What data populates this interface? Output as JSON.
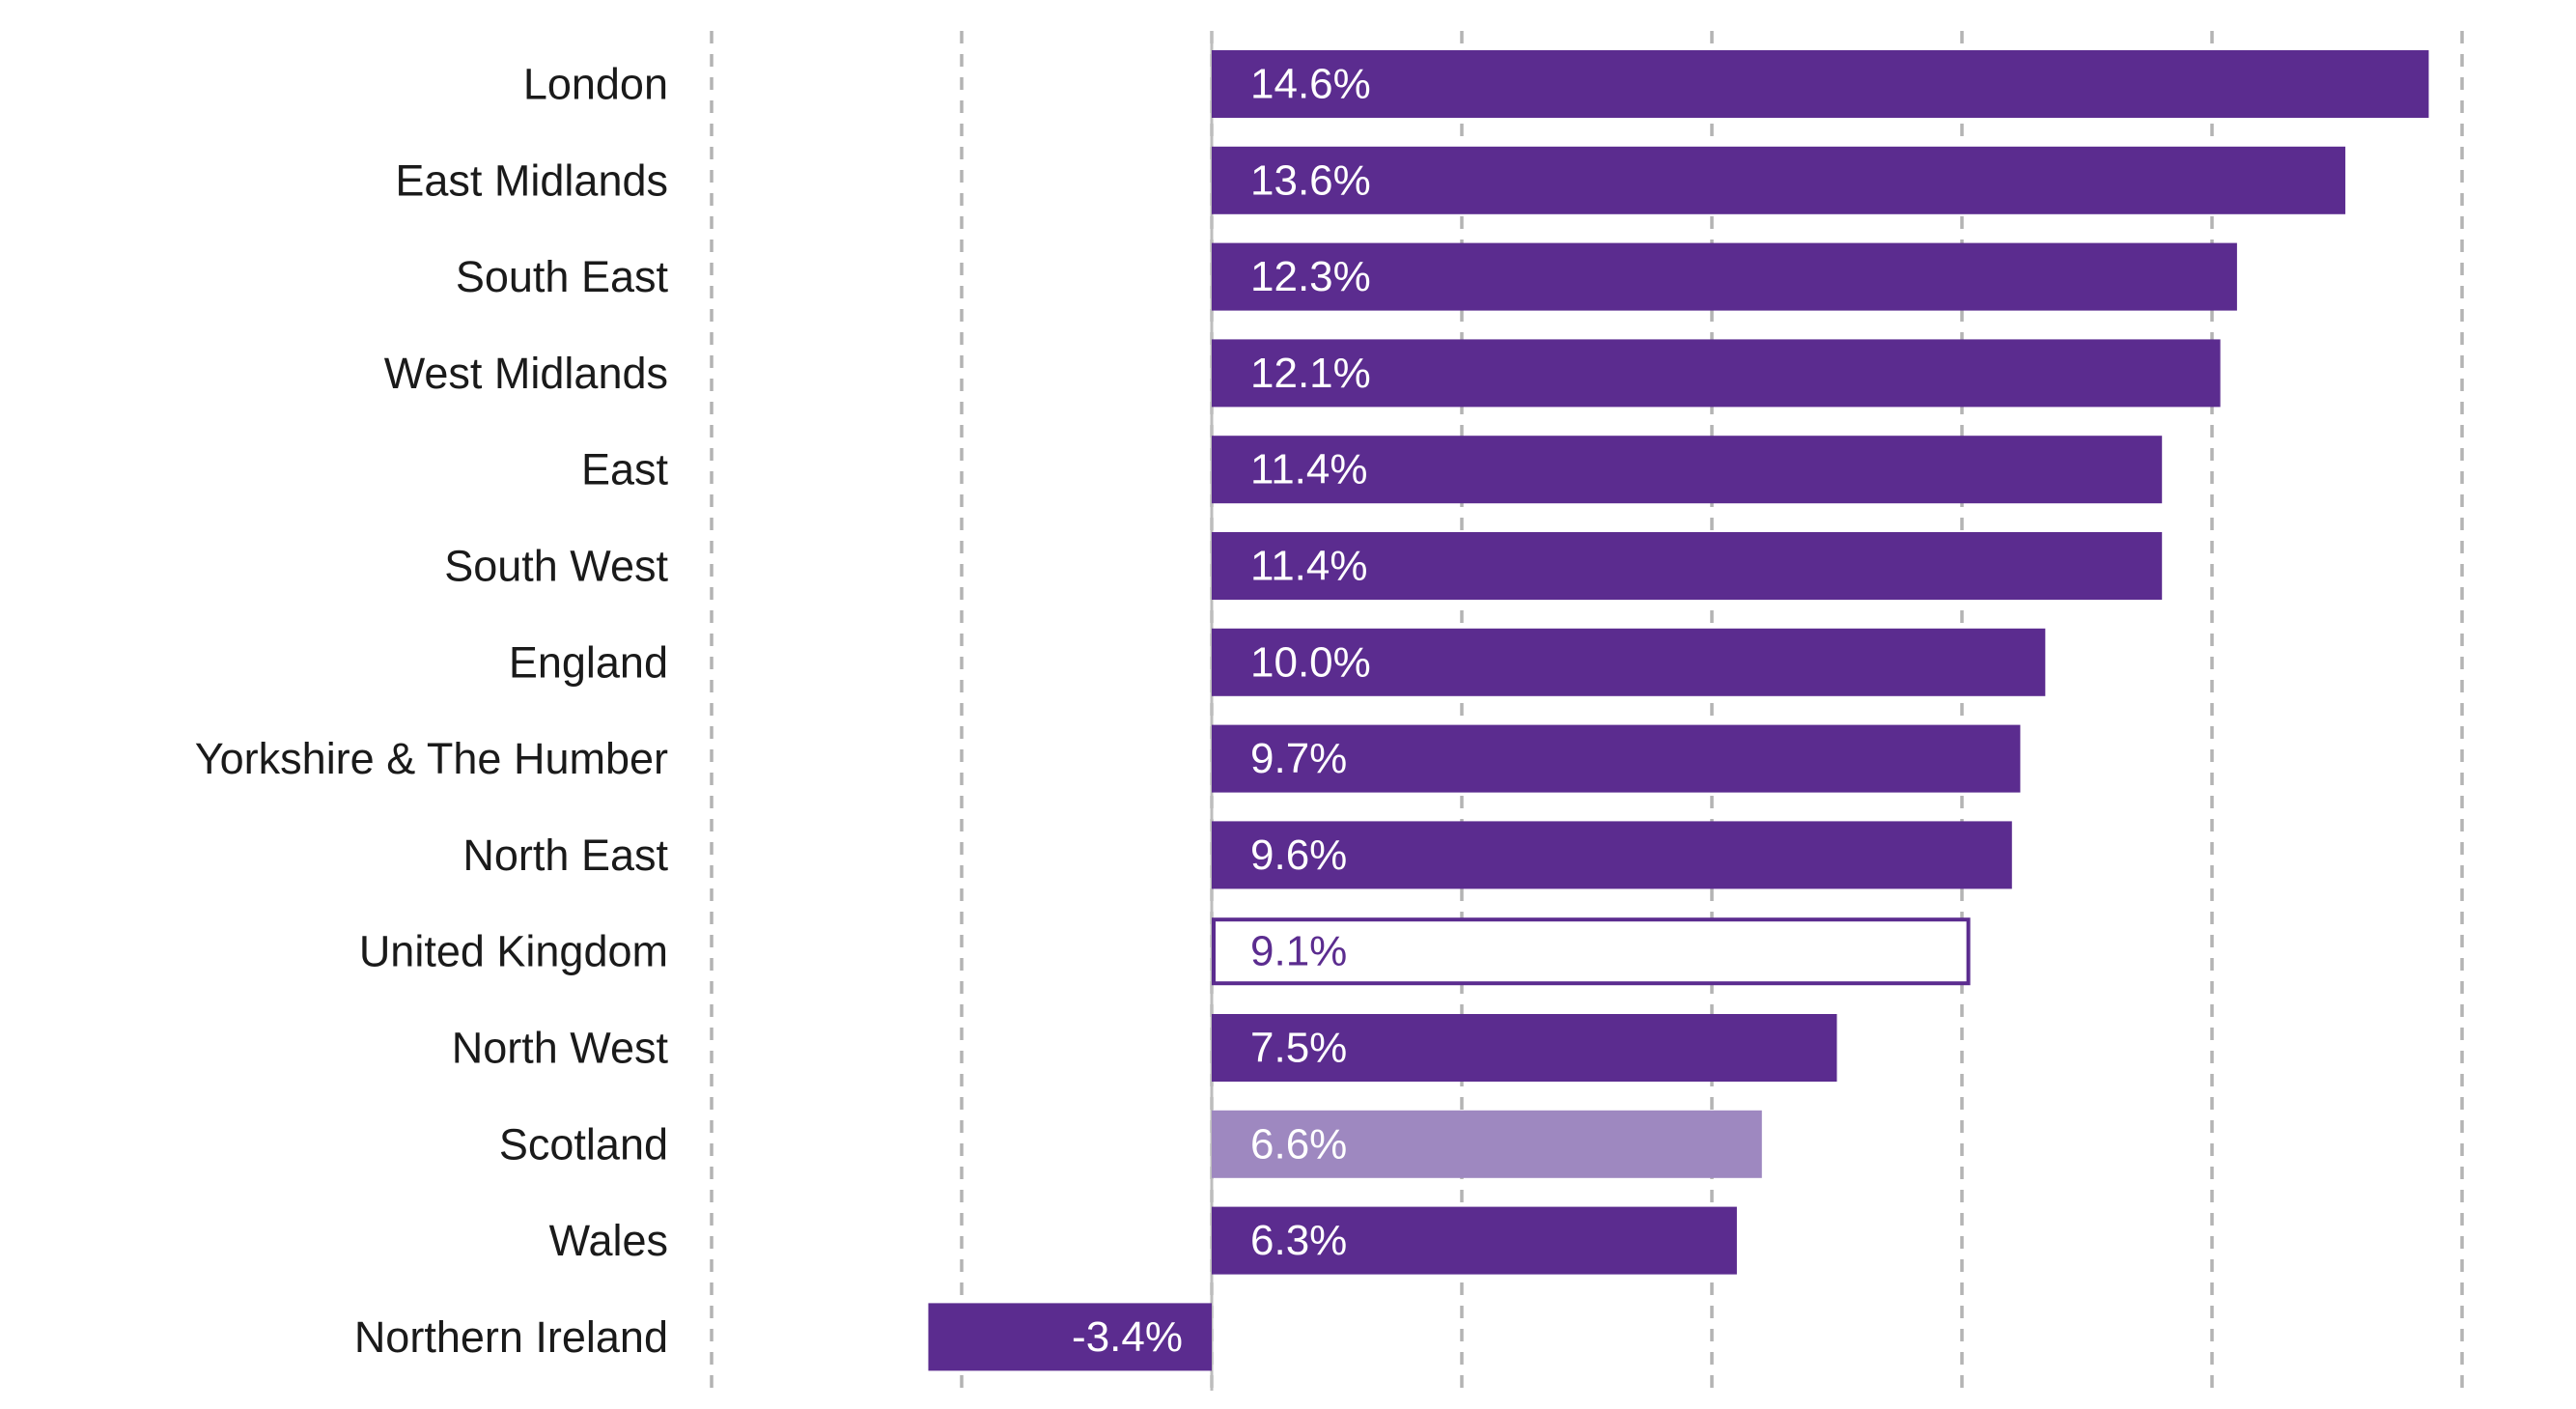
{
  "chart_data": {
    "type": "bar",
    "orientation": "horizontal",
    "title": "",
    "xlabel": "",
    "ylabel": "",
    "xlim": [
      -6,
      15
    ],
    "grid_step": 3,
    "grid": true,
    "categories": [
      "London",
      "East Midlands",
      "South East",
      "West Midlands",
      "East",
      "South West",
      "England",
      "Yorkshire & The Humber",
      "North East",
      "United Kingdom",
      "North West",
      "Scotland",
      "Wales",
      "Northern Ireland"
    ],
    "values": [
      14.6,
      13.6,
      12.3,
      12.1,
      11.4,
      11.4,
      10.0,
      9.7,
      9.6,
      9.1,
      7.5,
      6.6,
      6.3,
      -3.4
    ],
    "data_labels": [
      "14.6%",
      "13.6%",
      "12.3%",
      "12.1%",
      "11.4%",
      "11.4%",
      "10.0%",
      "9.7%",
      "9.6%",
      "9.1%",
      "7.5%",
      "6.6%",
      "6.3%",
      "-3.4%"
    ],
    "bar_styles": [
      "solid",
      "solid",
      "solid",
      "solid",
      "solid",
      "solid",
      "solid",
      "solid",
      "solid",
      "outline",
      "solid",
      "light",
      "solid",
      "solid"
    ],
    "colors": {
      "solid": "#5b2c8f",
      "light": "#9e88c0",
      "outline_stroke": "#5b2c8f",
      "outline_fill": "#ffffff",
      "label_on_fill": "#ffffff",
      "label_on_outline": "#5b2c8f",
      "category_text": "#1a1a1a",
      "grid": "#b3b3b3"
    }
  }
}
